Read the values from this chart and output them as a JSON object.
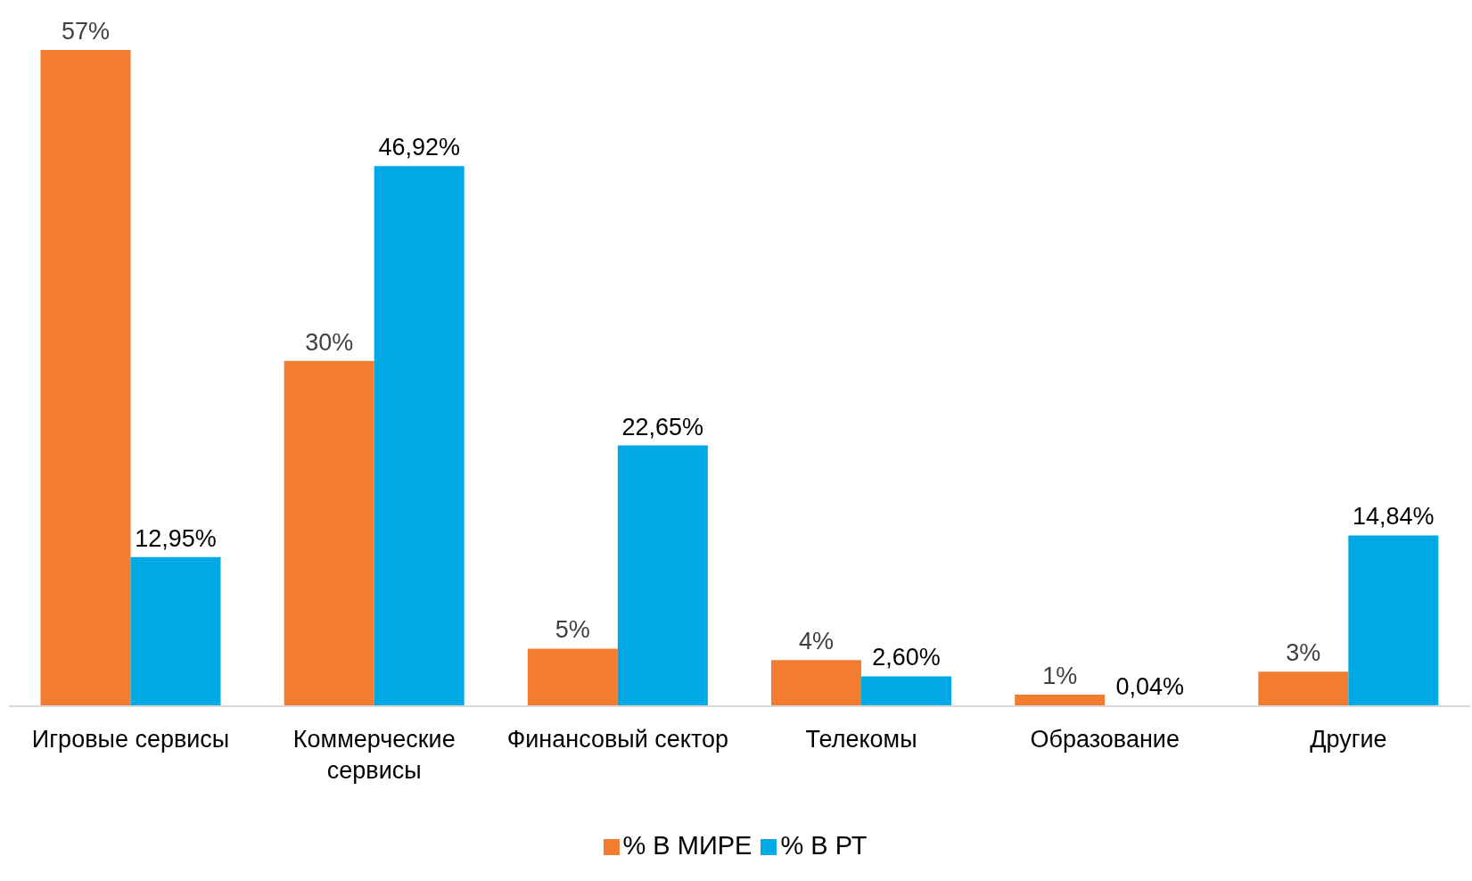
{
  "chart_data": {
    "type": "bar",
    "categories": [
      "Игровые сервисы",
      "Коммерческие сервисы",
      "Финансовый сектор",
      "Телекомы",
      "Образование",
      "Другие"
    ],
    "series": [
      {
        "name": "% В МИРЕ",
        "color": "#f27c30",
        "values": [
          57,
          30,
          5,
          4,
          1,
          3
        ],
        "value_labels": [
          "57%",
          "30%",
          "5%",
          "4%",
          "1%",
          "3%"
        ]
      },
      {
        "name": "% В РТ",
        "color": "#00a9e3",
        "values": [
          12.95,
          46.92,
          22.65,
          2.6,
          0.04,
          14.84
        ],
        "value_labels": [
          "12,95%",
          "46,92%",
          "22,65%",
          "2,60%",
          "0,04%",
          "14,84%"
        ]
      }
    ],
    "legend": "bottom",
    "grid": false
  }
}
